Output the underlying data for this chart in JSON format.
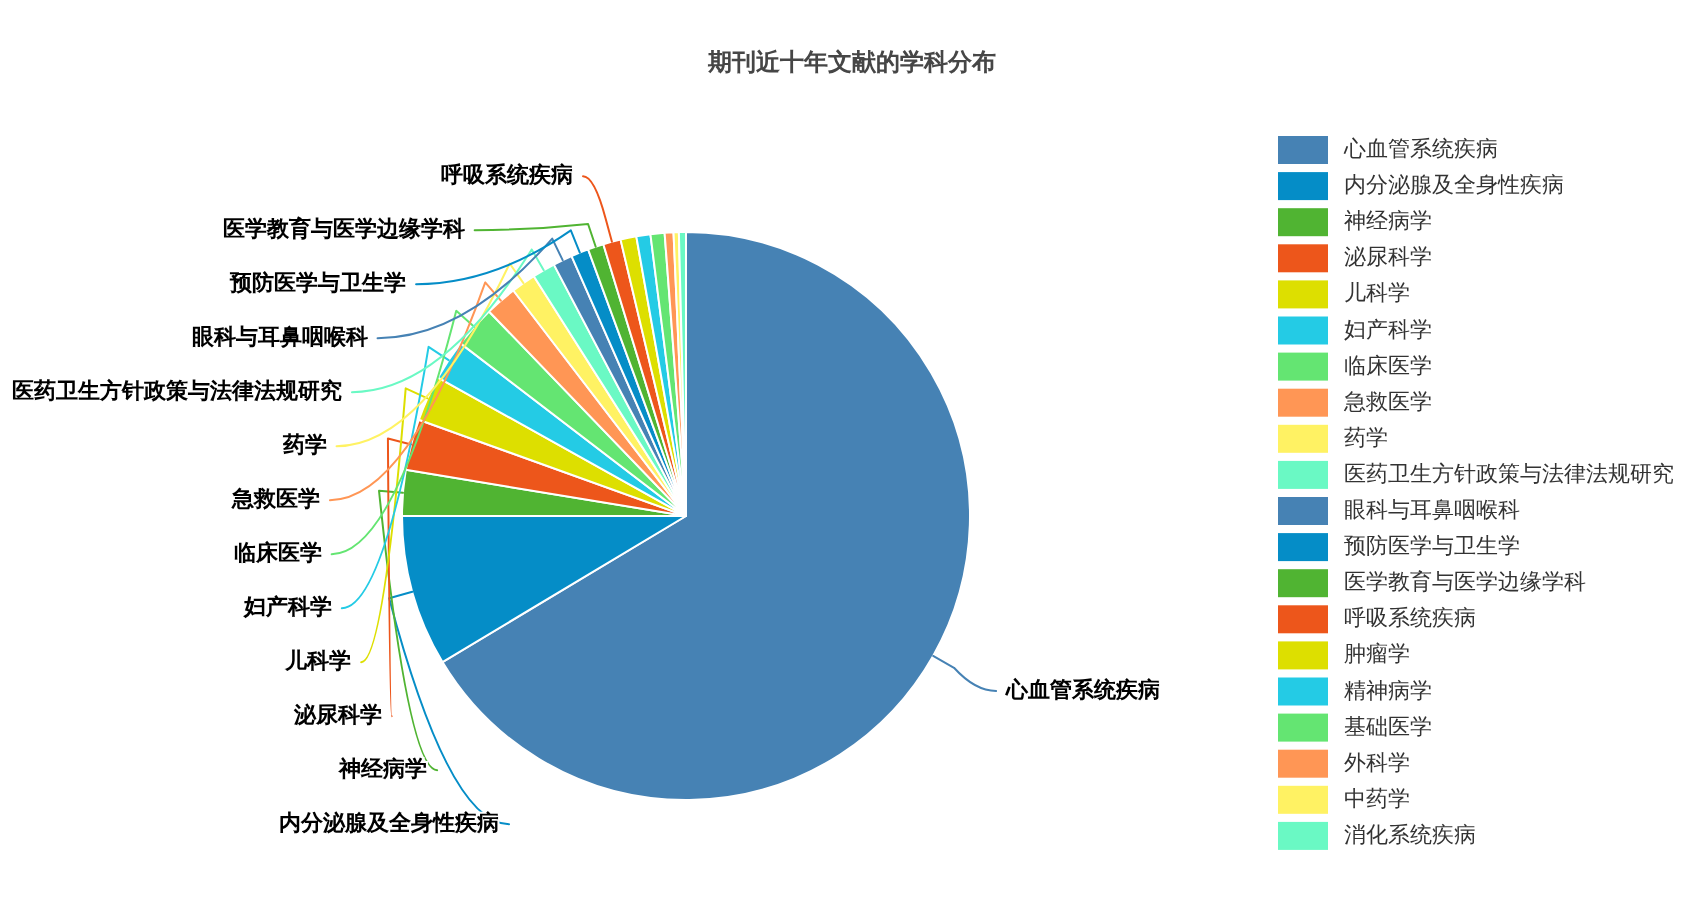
{
  "chart_data": {
    "type": "pie",
    "title": "期刊近十年文献的学科分布",
    "categories": [
      "心血管系统疾病",
      "内分泌腺及全身性疾病",
      "神经病学",
      "泌尿科学",
      "儿科学",
      "妇产科学",
      "临床医学",
      "急救医学",
      "药学",
      "医药卫生方针政策与法律法规研究",
      "眼科与耳鼻咽喉科",
      "预防医学与卫生学",
      "医学教育与医学边缘学科",
      "呼吸系统疾病",
      "肿瘤学",
      "精神病学",
      "基础医学",
      "外科学",
      "中药学",
      "消化系统疾病"
    ],
    "values": [
      66.4,
      8.6,
      2.6,
      2.9,
      2.6,
      2.3,
      2.4,
      1.8,
      1.4,
      1.3,
      1.1,
      1.0,
      0.9,
      1.0,
      0.9,
      0.8,
      0.8,
      0.5,
      0.3,
      0.4
    ],
    "colors": [
      "#4682b4",
      "#058dc7",
      "#50b432",
      "#ed561b",
      "#dddf00",
      "#24cbe5",
      "#64e572",
      "#ff9655",
      "#fff263",
      "#6af9c4",
      "#4682b4",
      "#058dc7",
      "#50b432",
      "#ed561b",
      "#dddf00",
      "#24cbe5",
      "#64e572",
      "#ff9655",
      "#fff263",
      "#6af9c4"
    ],
    "legend": "right"
  }
}
